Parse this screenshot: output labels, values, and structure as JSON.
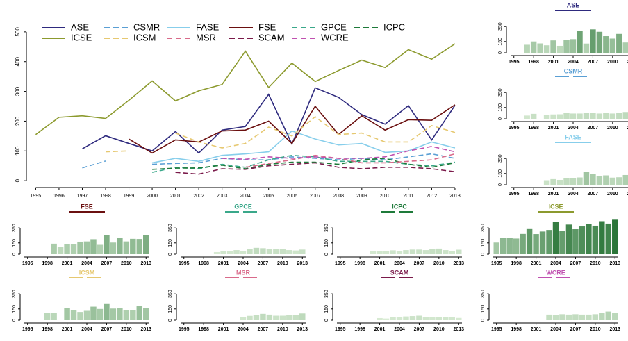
{
  "chart_data": [
    {
      "type": "line",
      "x": [
        1995,
        1996,
        1997,
        1998,
        1999,
        2000,
        2001,
        2002,
        2003,
        2004,
        2005,
        2006,
        2007,
        2008,
        2009,
        2010,
        2011,
        2012,
        2013
      ],
      "xlim": [
        1994.6,
        2013.3
      ],
      "xticks": [
        1995,
        1996,
        1997,
        1998,
        1999,
        2000,
        2001,
        2002,
        2003,
        2004,
        2005,
        2006,
        2007,
        2008,
        2009,
        2010,
        2011,
        2012,
        2013
      ],
      "ylim": [
        -23,
        537
      ],
      "yticks": [
        0,
        100,
        200,
        300,
        400,
        500
      ],
      "series": [
        {
          "name": "ASE",
          "color": "#2e2a7e",
          "dashed": false,
          "values": [
            null,
            null,
            107,
            151,
            125,
            100,
            165,
            93,
            170,
            182,
            290,
            123,
            312,
            280,
            222,
            190,
            252,
            137,
            253
          ]
        },
        {
          "name": "CSMR",
          "color": "#5a9fd4",
          "dashed": true,
          "values": [
            null,
            null,
            43,
            66,
            null,
            55,
            58,
            60,
            75,
            70,
            70,
            80,
            75,
            70,
            75,
            70,
            80,
            90,
            75
          ]
        },
        {
          "name": "FASE",
          "color": "#87ceeb",
          "dashed": false,
          "values": [
            null,
            null,
            null,
            null,
            null,
            60,
            75,
            65,
            85,
            90,
            97,
            167,
            140,
            120,
            125,
            95,
            100,
            130,
            110
          ]
        },
        {
          "name": "FSE",
          "color": "#6b1010",
          "dashed": false,
          "values": [
            null,
            null,
            null,
            null,
            140,
            93,
            137,
            130,
            167,
            170,
            200,
            125,
            250,
            155,
            218,
            170,
            205,
            203,
            255
          ]
        },
        {
          "name": "GPCE",
          "color": "#3aa88a",
          "dashed": true,
          "values": [
            null,
            null,
            null,
            null,
            null,
            28,
            45,
            40,
            55,
            45,
            70,
            85,
            80,
            65,
            65,
            65,
            55,
            50,
            62
          ]
        },
        {
          "name": "ICPC",
          "color": "#1e7a3a",
          "dashed": true,
          "values": [
            null,
            null,
            null,
            null,
            null,
            38,
            42,
            43,
            52,
            40,
            55,
            62,
            62,
            55,
            70,
            75,
            55,
            45,
            60
          ]
        },
        {
          "name": "ICSE",
          "color": "#8c9a2e",
          "dashed": false,
          "values": [
            155,
            213,
            218,
            209,
            270,
            335,
            268,
            302,
            323,
            435,
            313,
            395,
            333,
            370,
            405,
            380,
            440,
            408,
            460
          ]
        },
        {
          "name": "ICSM",
          "color": "#e6c870",
          "dashed": true,
          "values": [
            null,
            null,
            null,
            97,
            100,
            null,
            160,
            130,
            110,
            125,
            180,
            150,
            215,
            155,
            160,
            130,
            130,
            185,
            162
          ]
        },
        {
          "name": "MSR",
          "color": "#d96a8a",
          "dashed": true,
          "values": [
            null,
            null,
            null,
            null,
            null,
            null,
            null,
            null,
            null,
            45,
            58,
            70,
            85,
            75,
            60,
            60,
            65,
            70,
            90
          ]
        },
        {
          "name": "SCAM",
          "color": "#7a1a4a",
          "dashed": true,
          "values": [
            null,
            null,
            null,
            null,
            null,
            null,
            28,
            22,
            40,
            38,
            50,
            55,
            60,
            45,
            40,
            45,
            45,
            40,
            30
          ]
        },
        {
          "name": "WCRE",
          "color": "#c050b0",
          "dashed": true,
          "values": [
            null,
            null,
            null,
            null,
            null,
            null,
            null,
            null,
            75,
            72,
            80,
            75,
            80,
            75,
            75,
            80,
            100,
            115,
            97
          ]
        }
      ]
    },
    {
      "type": "bar",
      "xticks": [
        1995,
        1998,
        2001,
        2004,
        2007,
        2010,
        2013
      ],
      "ylim": [
        0,
        500
      ],
      "yticks": [
        0,
        150,
        350
      ]
    }
  ]
}
